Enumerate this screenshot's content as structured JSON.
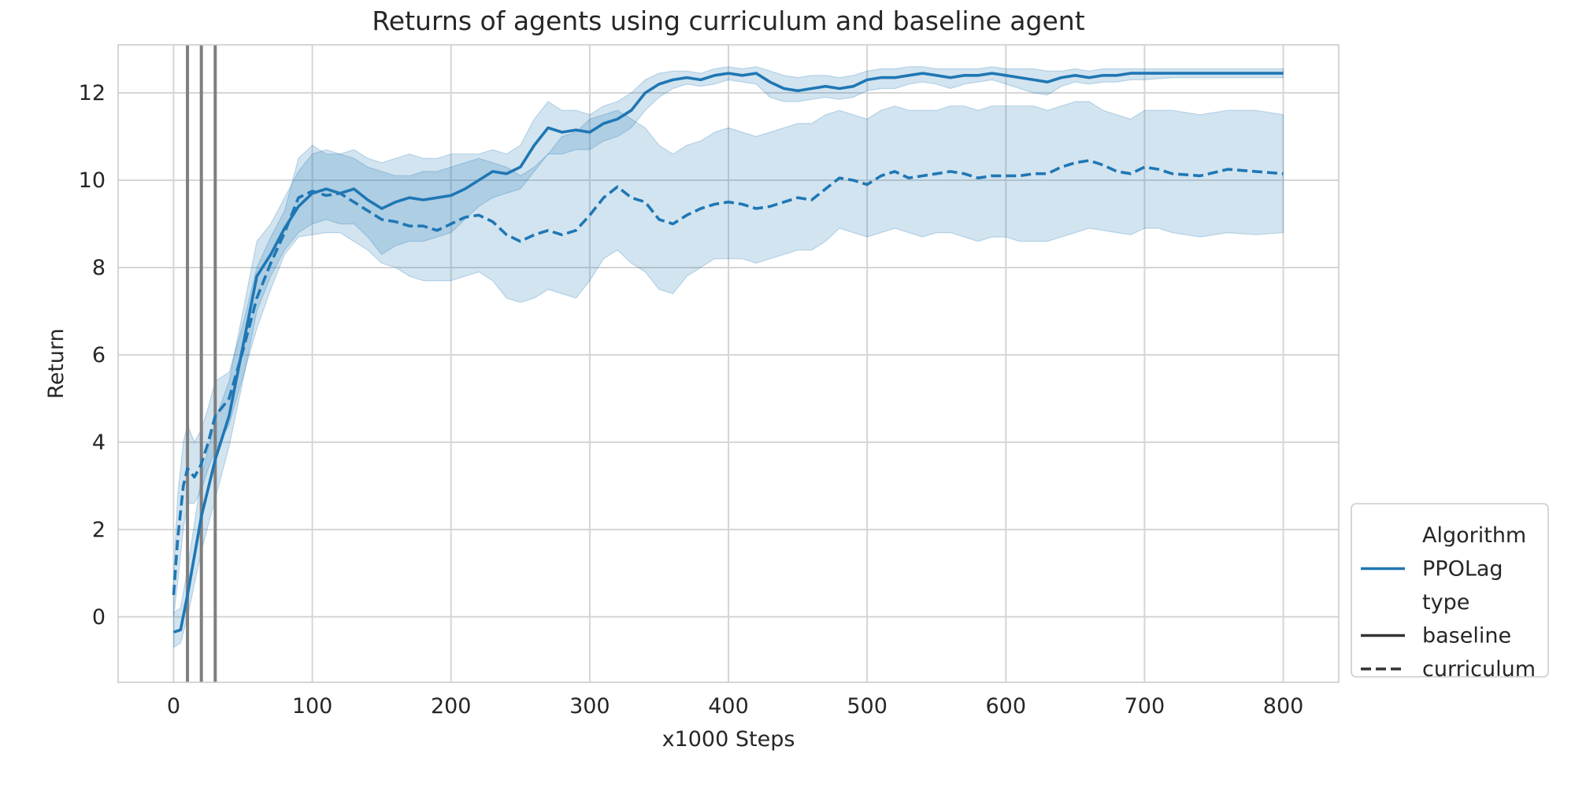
{
  "chart_data": {
    "type": "line",
    "title": "Returns of agents using curriculum and baseline agent",
    "xlabel": "x1000 Steps",
    "ylabel": "Return",
    "xlim": [
      -40,
      840
    ],
    "ylim": [
      -1.5,
      13.1
    ],
    "xticks": [
      0,
      100,
      200,
      300,
      400,
      500,
      600,
      700,
      800
    ],
    "yticks": [
      0,
      2,
      4,
      6,
      8,
      10,
      12
    ],
    "grid": true,
    "vertical_markers": [
      10,
      20,
      30
    ],
    "legend": {
      "placement": "lower-right outside",
      "groups": [
        {
          "title": "Algorithm",
          "entries": [
            {
              "label": "PPOLag",
              "style": "solid",
              "color": "#1f77b4"
            }
          ]
        },
        {
          "title": "type",
          "entries": [
            {
              "label": "baseline",
              "style": "solid",
              "color": "#333333"
            },
            {
              "label": "curriculum",
              "style": "dashed",
              "color": "#333333"
            }
          ]
        }
      ]
    },
    "colors": {
      "series": "#1f77b4",
      "band": "#1f77b4",
      "marker": "#7f7f7f",
      "grid": "#d5d5d5"
    },
    "series": [
      {
        "name": "baseline",
        "style": "solid",
        "x": [
          0,
          5,
          10,
          20,
          30,
          40,
          50,
          60,
          70,
          80,
          90,
          100,
          110,
          120,
          130,
          140,
          150,
          160,
          170,
          180,
          190,
          200,
          210,
          220,
          230,
          240,
          250,
          260,
          270,
          280,
          290,
          300,
          310,
          320,
          330,
          340,
          350,
          360,
          370,
          380,
          390,
          400,
          410,
          420,
          430,
          440,
          450,
          460,
          470,
          480,
          490,
          500,
          510,
          520,
          530,
          540,
          550,
          560,
          570,
          580,
          590,
          600,
          610,
          620,
          630,
          640,
          650,
          660,
          670,
          680,
          690,
          700,
          720,
          740,
          760,
          780,
          800
        ],
        "mean": [
          -0.35,
          -0.3,
          0.5,
          2.3,
          3.6,
          4.6,
          6.2,
          7.8,
          8.3,
          8.9,
          9.4,
          9.7,
          9.8,
          9.7,
          9.8,
          9.55,
          9.35,
          9.5,
          9.6,
          9.55,
          9.6,
          9.65,
          9.8,
          10.0,
          10.2,
          10.15,
          10.3,
          10.8,
          11.2,
          11.1,
          11.15,
          11.1,
          11.3,
          11.4,
          11.6,
          12.0,
          12.2,
          12.3,
          12.35,
          12.3,
          12.4,
          12.45,
          12.4,
          12.45,
          12.25,
          12.1,
          12.05,
          12.1,
          12.15,
          12.1,
          12.15,
          12.3,
          12.35,
          12.35,
          12.4,
          12.45,
          12.4,
          12.35,
          12.4,
          12.4,
          12.45,
          12.4,
          12.35,
          12.3,
          12.25,
          12.35,
          12.4,
          12.35,
          12.4,
          12.4,
          12.45,
          12.45,
          12.45,
          12.45,
          12.45,
          12.45,
          12.45
        ],
        "lower": [
          -0.7,
          -0.6,
          0.0,
          1.5,
          2.7,
          3.9,
          5.4,
          7.0,
          7.8,
          8.4,
          8.8,
          9.0,
          9.1,
          9.0,
          9.0,
          8.7,
          8.3,
          8.5,
          8.6,
          8.6,
          8.7,
          8.8,
          9.1,
          9.4,
          9.6,
          9.7,
          9.8,
          10.2,
          10.6,
          10.6,
          10.7,
          10.7,
          10.9,
          11.0,
          11.2,
          11.6,
          11.9,
          12.1,
          12.2,
          12.15,
          12.2,
          12.3,
          12.25,
          12.2,
          11.9,
          11.8,
          11.8,
          11.85,
          11.9,
          11.85,
          11.9,
          12.05,
          12.1,
          12.1,
          12.2,
          12.25,
          12.2,
          12.1,
          12.2,
          12.25,
          12.3,
          12.2,
          12.1,
          12.0,
          11.95,
          12.15,
          12.25,
          12.2,
          12.25,
          12.25,
          12.3,
          12.3,
          12.35,
          12.35,
          12.35,
          12.35,
          12.35
        ],
        "upper": [
          0.1,
          0.2,
          1.1,
          3.2,
          4.5,
          5.4,
          7.0,
          8.6,
          9.0,
          9.6,
          10.2,
          10.6,
          10.7,
          10.6,
          10.7,
          10.5,
          10.4,
          10.5,
          10.6,
          10.5,
          10.5,
          10.6,
          10.6,
          10.6,
          10.7,
          10.6,
          10.8,
          11.4,
          11.8,
          11.6,
          11.6,
          11.5,
          11.7,
          11.8,
          12.0,
          12.3,
          12.45,
          12.5,
          12.5,
          12.45,
          12.55,
          12.6,
          12.55,
          12.6,
          12.5,
          12.4,
          12.35,
          12.4,
          12.4,
          12.35,
          12.4,
          12.5,
          12.55,
          12.55,
          12.6,
          12.6,
          12.55,
          12.55,
          12.55,
          12.55,
          12.6,
          12.55,
          12.55,
          12.55,
          12.5,
          12.5,
          12.55,
          12.5,
          12.55,
          12.55,
          12.55,
          12.55,
          12.55,
          12.55,
          12.55,
          12.55,
          12.55
        ]
      },
      {
        "name": "curriculum",
        "style": "dashed",
        "x": [
          0,
          3,
          7,
          10,
          15,
          20,
          25,
          30,
          40,
          50,
          60,
          70,
          80,
          90,
          100,
          110,
          120,
          130,
          140,
          150,
          160,
          170,
          180,
          190,
          200,
          210,
          220,
          230,
          240,
          250,
          260,
          270,
          280,
          290,
          300,
          310,
          320,
          330,
          340,
          350,
          360,
          370,
          380,
          390,
          400,
          410,
          420,
          430,
          440,
          450,
          460,
          470,
          480,
          490,
          500,
          510,
          520,
          530,
          540,
          550,
          560,
          570,
          580,
          590,
          600,
          610,
          620,
          630,
          640,
          650,
          660,
          670,
          680,
          690,
          700,
          710,
          720,
          740,
          760,
          780,
          800
        ],
        "mean": [
          0.5,
          1.8,
          3.0,
          3.4,
          3.2,
          3.5,
          4.0,
          4.6,
          5.0,
          6.1,
          7.3,
          8.1,
          8.8,
          9.6,
          9.75,
          9.65,
          9.7,
          9.5,
          9.3,
          9.1,
          9.05,
          8.95,
          8.95,
          8.85,
          9.0,
          9.15,
          9.2,
          9.05,
          8.75,
          8.6,
          8.75,
          8.85,
          8.75,
          8.85,
          9.2,
          9.6,
          9.85,
          9.6,
          9.5,
          9.1,
          9.0,
          9.2,
          9.35,
          9.45,
          9.5,
          9.45,
          9.35,
          9.4,
          9.5,
          9.6,
          9.55,
          9.8,
          10.05,
          10.0,
          9.9,
          10.1,
          10.2,
          10.05,
          10.1,
          10.15,
          10.2,
          10.15,
          10.05,
          10.1,
          10.1,
          10.1,
          10.15,
          10.15,
          10.3,
          10.4,
          10.45,
          10.35,
          10.2,
          10.15,
          10.3,
          10.25,
          10.15,
          10.1,
          10.25,
          10.2,
          10.15
        ],
        "lower": [
          0.0,
          0.8,
          2.0,
          2.6,
          2.6,
          2.9,
          3.4,
          3.8,
          4.4,
          5.5,
          6.6,
          7.5,
          8.3,
          8.7,
          8.75,
          8.8,
          8.8,
          8.6,
          8.4,
          8.1,
          8.0,
          7.8,
          7.7,
          7.7,
          7.7,
          7.8,
          7.9,
          7.7,
          7.3,
          7.2,
          7.3,
          7.5,
          7.4,
          7.3,
          7.7,
          8.2,
          8.4,
          8.1,
          7.9,
          7.5,
          7.4,
          7.8,
          8.0,
          8.2,
          8.2,
          8.2,
          8.1,
          8.2,
          8.3,
          8.4,
          8.4,
          8.6,
          8.9,
          8.8,
          8.7,
          8.8,
          8.9,
          8.8,
          8.7,
          8.8,
          8.8,
          8.7,
          8.6,
          8.7,
          8.7,
          8.6,
          8.6,
          8.6,
          8.7,
          8.8,
          8.9,
          8.85,
          8.8,
          8.75,
          8.9,
          8.9,
          8.8,
          8.7,
          8.8,
          8.75,
          8.8
        ],
        "upper": [
          1.0,
          2.8,
          4.0,
          4.4,
          4.0,
          4.3,
          4.8,
          5.4,
          5.6,
          6.7,
          8.0,
          8.7,
          9.3,
          10.5,
          10.8,
          10.6,
          10.6,
          10.5,
          10.3,
          10.2,
          10.1,
          10.1,
          10.2,
          10.2,
          10.3,
          10.4,
          10.5,
          10.4,
          10.3,
          10.1,
          10.3,
          10.6,
          11.0,
          11.1,
          11.4,
          11.5,
          11.6,
          11.4,
          11.2,
          10.8,
          10.6,
          10.8,
          10.9,
          11.1,
          11.2,
          11.1,
          11.0,
          11.1,
          11.2,
          11.3,
          11.3,
          11.5,
          11.6,
          11.5,
          11.4,
          11.6,
          11.7,
          11.6,
          11.6,
          11.6,
          11.7,
          11.7,
          11.6,
          11.7,
          11.7,
          11.7,
          11.7,
          11.6,
          11.7,
          11.8,
          11.8,
          11.6,
          11.5,
          11.4,
          11.6,
          11.6,
          11.6,
          11.5,
          11.6,
          11.6,
          11.5
        ]
      }
    ]
  }
}
